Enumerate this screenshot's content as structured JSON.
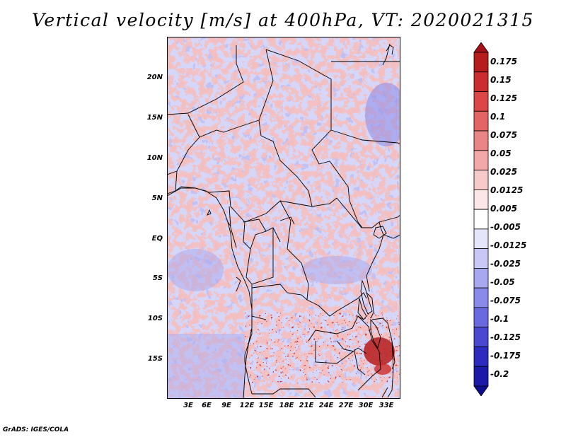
{
  "title": "Vertical velocity [m/s] at 400hPa, VT: 2020021315",
  "footer": "GrADS: IGES/COLA",
  "map": {
    "lat_labels": [
      "20N",
      "15N",
      "10N",
      "5N",
      "EQ",
      "5S",
      "10S",
      "15S"
    ],
    "lon_labels": [
      "3E",
      "6E",
      "9E",
      "12E",
      "15E",
      "18E",
      "21E",
      "24E",
      "27E",
      "30E",
      "33E"
    ]
  },
  "colorbar": {
    "labels": [
      "0.175",
      "0.15",
      "0.125",
      "0.1",
      "0.075",
      "0.05",
      "0.025",
      "0.0125",
      "0.005",
      "-0.005",
      "-0.0125",
      "-0.025",
      "-0.05",
      "-0.075",
      "-0.1",
      "-0.125",
      "-0.175",
      "-0.2"
    ],
    "colors": [
      "#a50f15",
      "#b71c1c",
      "#cb2c2c",
      "#dd4646",
      "#e36464",
      "#ea8585",
      "#f2a8a8",
      "#f7c9c9",
      "#fce6e6",
      "#ffffff",
      "#e4e4fb",
      "#c8c8f6",
      "#a8a8f0",
      "#8a8aea",
      "#6a6ae0",
      "#4848d2",
      "#2b2bbf",
      "#1a1aa8",
      "#0d0d8f"
    ]
  }
}
